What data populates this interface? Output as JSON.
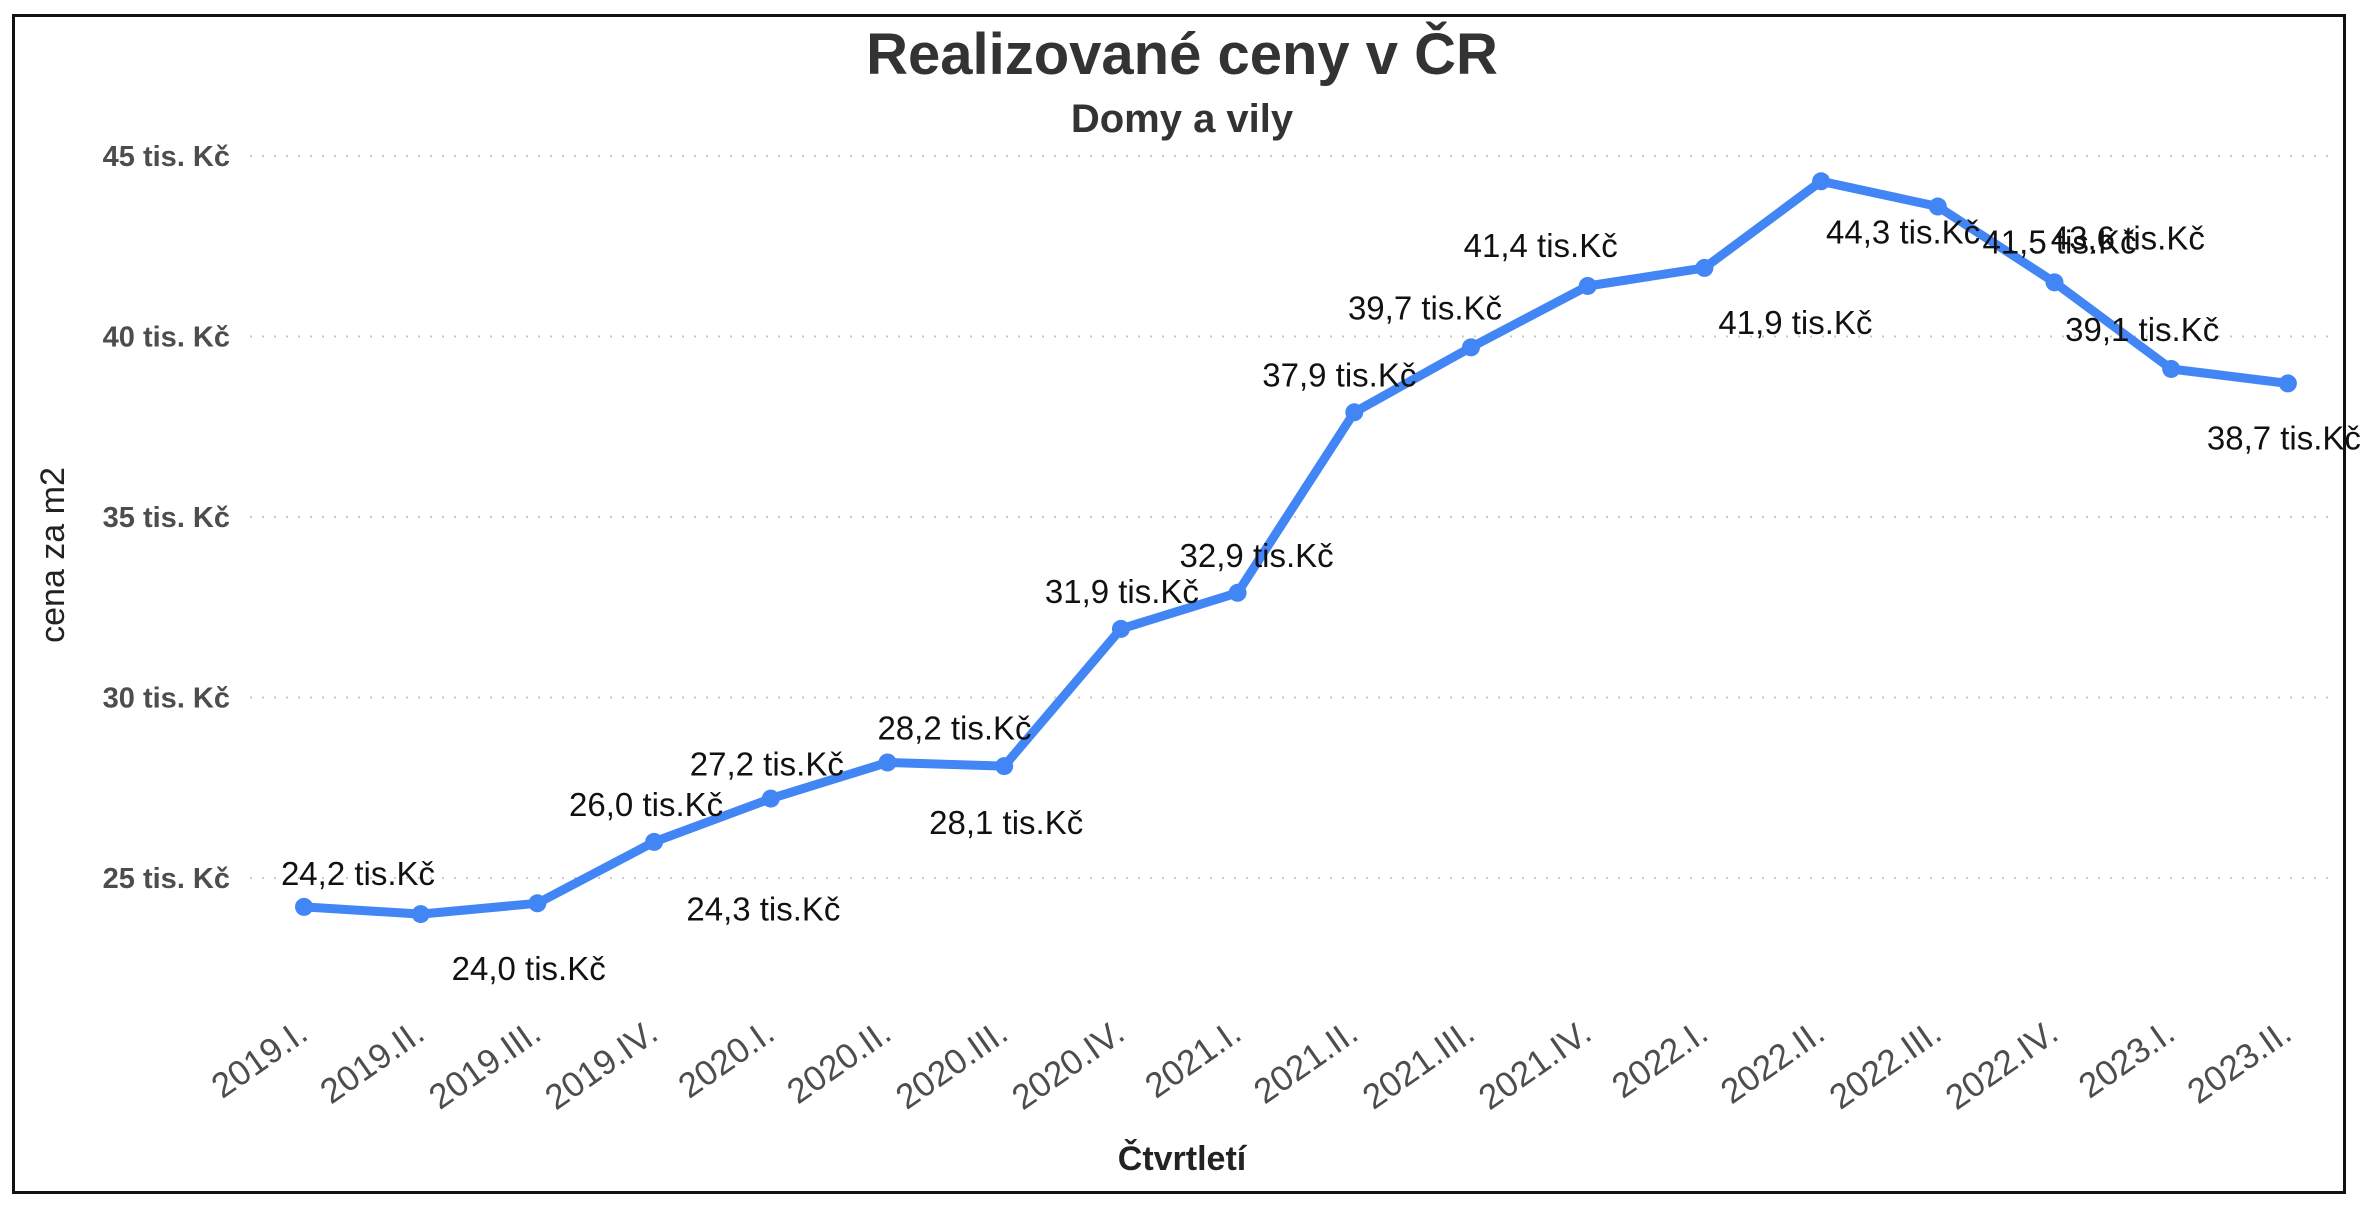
{
  "chart_data": {
    "type": "line",
    "title": "Realizované ceny v ČR",
    "subtitle": "Domy a vily",
    "xlabel": "Čtvrtletí",
    "ylabel": "cena za m2",
    "ylim": [
      22,
      46
    ],
    "yticks": [
      {
        "value": 25,
        "label": "25 tis. Kč"
      },
      {
        "value": 30,
        "label": "30 tis. Kč"
      },
      {
        "value": 35,
        "label": "35 tis. Kč"
      },
      {
        "value": 40,
        "label": "40 tis. Kč"
      },
      {
        "value": 45,
        "label": "45 tis. Kč"
      }
    ],
    "grid": true,
    "line_color": "#4285F4",
    "categories": [
      "2019.I.",
      "2019.II.",
      "2019.III.",
      "2019.IV.",
      "2020.I.",
      "2020.II.",
      "2020.III.",
      "2020.IV.",
      "2021.I.",
      "2021.II.",
      "2021.III.",
      "2021.IV.",
      "2022.I.",
      "2022.II.",
      "2022.III.",
      "2022.IV.",
      "2023.I.",
      "2023.II."
    ],
    "values": [
      24.2,
      24.0,
      24.3,
      26.0,
      27.2,
      28.2,
      28.1,
      31.9,
      32.9,
      37.9,
      39.7,
      41.4,
      41.9,
      44.3,
      43.6,
      41.5,
      39.1,
      38.7
    ],
    "data_labels": [
      "24,2 tis.Kč",
      "24,0 tis.Kč",
      "24,3 tis.Kč",
      "26,0 tis.Kč",
      "27,2 tis.Kč",
      "28,2 tis.Kč",
      "28,1 tis.Kč",
      "31,9 tis.Kč",
      "32,9 tis.Kč",
      "37,9 tis.Kč",
      "39,7 tis.Kč",
      "41,4 tis.Kč",
      "41,9 tis.Kč",
      "44,3 tis.Kč",
      "43,6 tis.Kč",
      "41,5 tis.Kč",
      "39,1 tis.Kč",
      "38,7 tis.Kč"
    ]
  }
}
